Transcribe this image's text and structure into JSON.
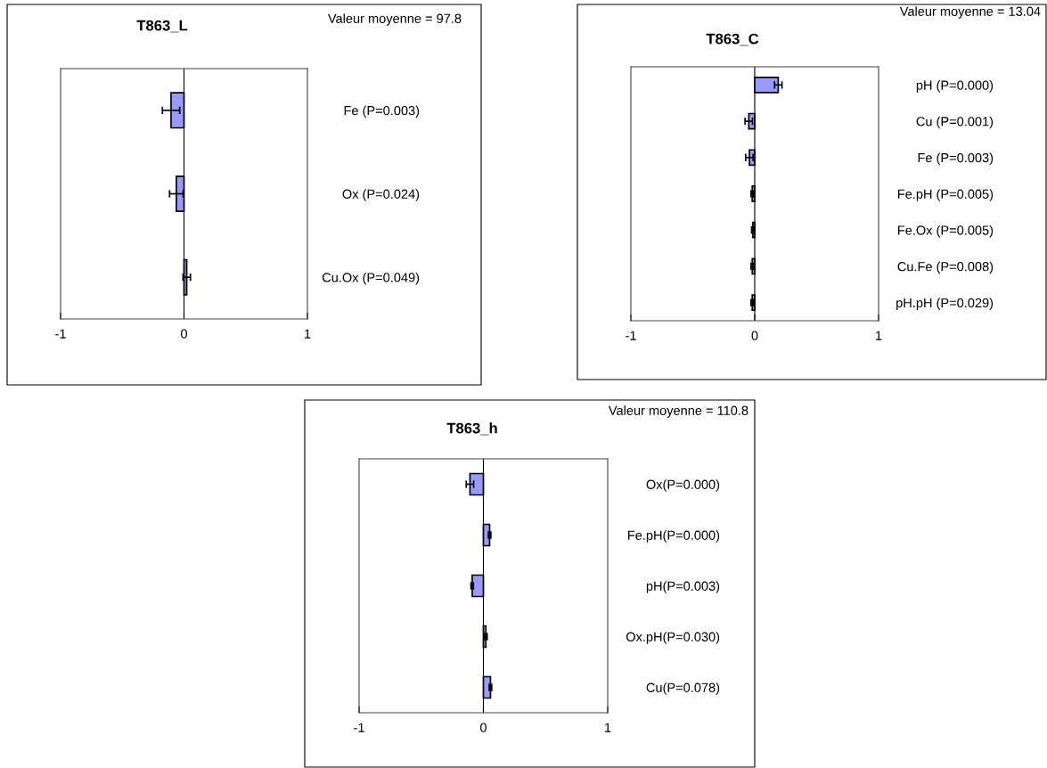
{
  "chart_data": [
    {
      "type": "bar",
      "orientation": "horizontal",
      "title": "T863_L",
      "subtitle": "Valeur moyenne = 97.8",
      "categories": [
        "Fe (P=0.003)",
        "Ox (P=0.024)",
        "Cu.Ox (P=0.049)"
      ],
      "values": [
        -0.105,
        -0.062,
        0.022
      ],
      "errors": [
        0.07,
        0.055,
        0.03
      ],
      "color": "#9999ff",
      "xlim": [
        -1,
        1
      ],
      "xticks": [
        -1,
        0,
        1
      ],
      "ref_lines": [
        {
          "axis": "x",
          "value": 0,
          "color": "#000000"
        }
      ],
      "grid": false
    },
    {
      "type": "bar",
      "orientation": "horizontal",
      "title": "T863_C",
      "subtitle": "Valeur moyenne = 13.04",
      "categories": [
        "pH (P=0.000)",
        "Cu (P=0.001)",
        "Fe (P=0.003)",
        "Fe.pH (P=0.005)",
        "Fe.Ox (P=0.005)",
        "Cu.Fe (P=0.008)",
        "pH.pH (P=0.029)"
      ],
      "values": [
        0.19,
        -0.048,
        -0.043,
        -0.02,
        -0.015,
        -0.02,
        -0.02
      ],
      "errors": [
        0.03,
        0.03,
        0.03,
        0.01,
        0.01,
        0.01,
        0.01
      ],
      "color": "#9999ff",
      "xlim": [
        -1,
        1
      ],
      "xticks": [
        -1,
        0,
        1
      ],
      "ref_lines": [
        {
          "axis": "x",
          "value": 0,
          "color": "#000000"
        }
      ],
      "grid": false
    },
    {
      "type": "bar",
      "orientation": "horizontal",
      "title": "T863_h",
      "subtitle": "Valeur moyenne = 110.8",
      "categories": [
        "Ox(P=0.000)",
        "Fe.pH(P=0.000)",
        "pH(P=0.003)",
        "Ox.pH(P=0.030)",
        "Cu(P=0.078)"
      ],
      "values": [
        -0.108,
        0.05,
        -0.09,
        0.02,
        0.057
      ],
      "errors": [
        0.03,
        0.01,
        0.01,
        0.01,
        0.01
      ],
      "color": "#9999ff",
      "xlim": [
        -1,
        1
      ],
      "xticks": [
        -1,
        0,
        1
      ],
      "ref_lines": [
        {
          "axis": "x",
          "value": 0,
          "color": "#000000"
        }
      ],
      "grid": false
    }
  ]
}
